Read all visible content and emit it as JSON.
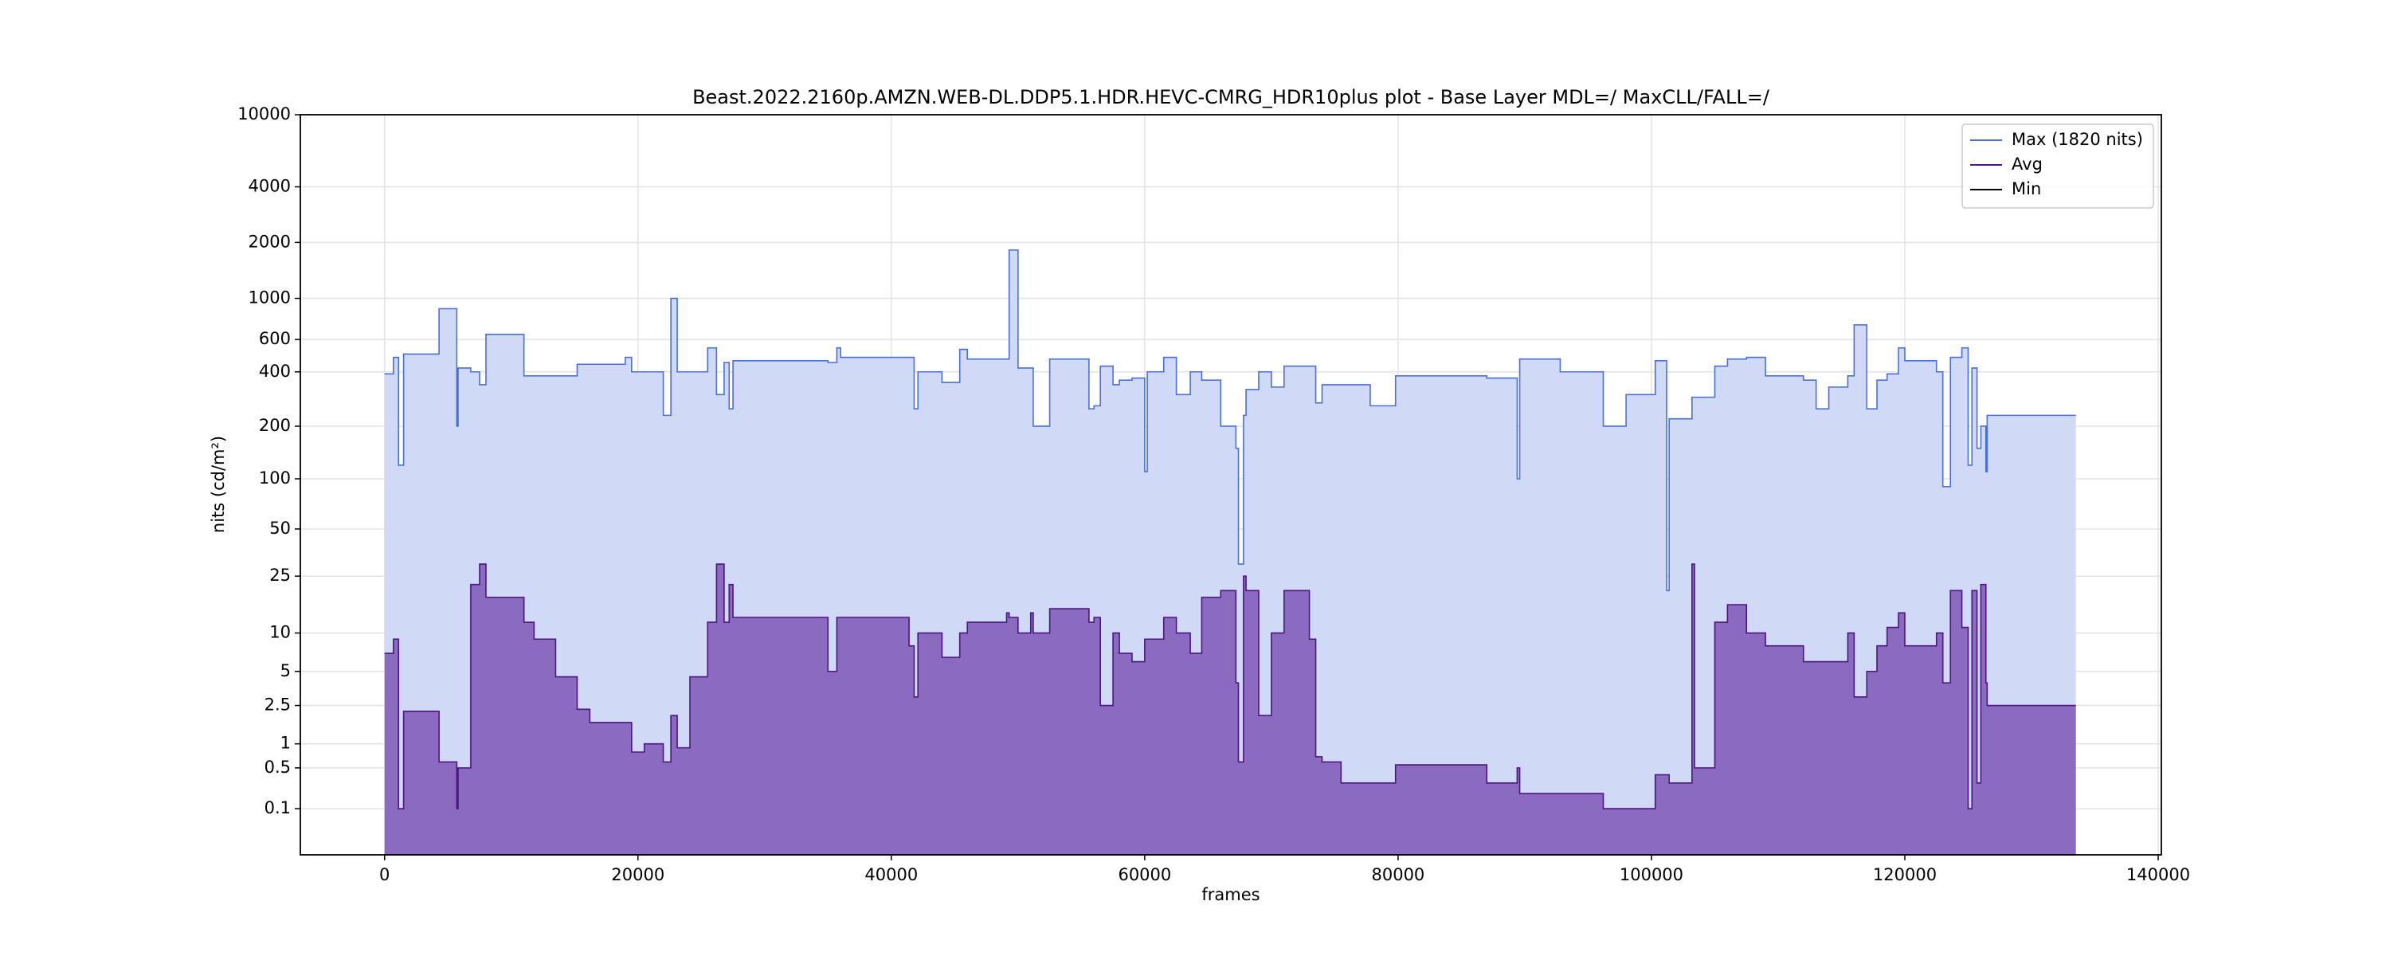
{
  "chart_data": {
    "type": "area",
    "title": "Beast.2022.2160p.AMZN.WEB-DL.DDP5.1.HDR.HEVC-CMRG_HDR10plus plot - Base Layer MDL=/ MaxCLL/FALL=/",
    "x_label": "frames",
    "y_label": "nits (cd/m²)",
    "yscale": "pq",
    "drawstyle": "steps-post",
    "grid": true,
    "legend": "upper right",
    "xlim": [
      -6650,
      140250
    ],
    "xticks": [
      0,
      20000,
      40000,
      60000,
      80000,
      100000,
      120000,
      140000
    ],
    "ylim": [
      0,
      10000
    ],
    "yticks": [
      0.1,
      0.5,
      1,
      2.5,
      5,
      10,
      25,
      50,
      100,
      200,
      400,
      600,
      1000,
      2000,
      4000,
      10000
    ],
    "x": [
      0,
      700,
      1100,
      1500,
      4300,
      5700,
      5800,
      6800,
      7500,
      8000,
      11000,
      11800,
      13500,
      15200,
      16200,
      19000,
      19500,
      20500,
      22000,
      22600,
      23100,
      24100,
      25500,
      26200,
      26800,
      27200,
      27500,
      35000,
      35700,
      36000,
      41400,
      41800,
      42100,
      44000,
      45400,
      46000,
      49100,
      49300,
      50000,
      51000,
      51200,
      52500,
      55600,
      56000,
      56500,
      57500,
      58000,
      59000,
      60000,
      60200,
      61500,
      62500,
      63600,
      64500,
      66000,
      67200,
      67400,
      67800,
      68000,
      69000,
      70000,
      71000,
      73000,
      73500,
      74000,
      75500,
      77800,
      79800,
      87000,
      89400,
      89600,
      92800,
      96200,
      98000,
      100300,
      101200,
      101400,
      103200,
      103400,
      105000,
      106000,
      107500,
      109000,
      112000,
      113000,
      114000,
      115500,
      116000,
      117000,
      117800,
      118600,
      119500,
      120000,
      122500,
      123000,
      123600,
      124500,
      125000,
      125300,
      125700,
      126000,
      126400,
      126500,
      133500
    ],
    "series": [
      {
        "name": "Max (1820 nits)",
        "color": "#4a6fd8",
        "fill": "#d0d9f6",
        "values": [
          390,
          480,
          120,
          500,
          880,
          200,
          420,
          400,
          340,
          640,
          380,
          380,
          380,
          440,
          440,
          480,
          400,
          400,
          230,
          1000,
          400,
          400,
          540,
          300,
          450,
          250,
          460,
          450,
          540,
          480,
          480,
          250,
          400,
          350,
          530,
          470,
          470,
          1820,
          420,
          420,
          200,
          470,
          250,
          260,
          430,
          340,
          360,
          370,
          110,
          400,
          480,
          300,
          400,
          360,
          200,
          150,
          30,
          230,
          320,
          400,
          330,
          430,
          430,
          270,
          340,
          340,
          260,
          380,
          370,
          100,
          470,
          400,
          200,
          300,
          460,
          20,
          220,
          290,
          290,
          430,
          470,
          480,
          380,
          360,
          250,
          330,
          380,
          720,
          250,
          360,
          390,
          540,
          460,
          400,
          90,
          480,
          540,
          120,
          420,
          150,
          200,
          110,
          230,
          230
        ]
      },
      {
        "name": "Avg",
        "color": "#4b1582",
        "fill": "#8b6bbf",
        "values": [
          7,
          9,
          0.1,
          2.2,
          0.6,
          0.1,
          0.5,
          22,
          30,
          18,
          12,
          9,
          4.5,
          2.3,
          1.7,
          1.7,
          0.8,
          1,
          0.6,
          2,
          0.9,
          4.5,
          12,
          30,
          12,
          22,
          13,
          5,
          13,
          13,
          8,
          3,
          10,
          6.5,
          10,
          12,
          14,
          13,
          10,
          14,
          10,
          15,
          12,
          13,
          2.5,
          10,
          7,
          6,
          9,
          9,
          13,
          10,
          7,
          18,
          20,
          4,
          0.6,
          25,
          20,
          2,
          10,
          20,
          9,
          0.7,
          0.6,
          0.3,
          0.3,
          0.55,
          0.3,
          0.5,
          0.2,
          0.2,
          0.1,
          0.1,
          0.4,
          0.4,
          0.3,
          30,
          0.5,
          12,
          16,
          10,
          8,
          6,
          6,
          6,
          10,
          3,
          5,
          8,
          11,
          14,
          8,
          10,
          4,
          20,
          11,
          0.1,
          20,
          0.3,
          22,
          4,
          2.5,
          2.5
        ]
      },
      {
        "name": "Min",
        "color": "#000000",
        "values": [
          0,
          0,
          0,
          0,
          0,
          0,
          0,
          0,
          0,
          0,
          0,
          0,
          0,
          0,
          0,
          0,
          0,
          0,
          0,
          0,
          0,
          0,
          0,
          0,
          0,
          0,
          0,
          0,
          0,
          0,
          0,
          0,
          0,
          0,
          0,
          0,
          0,
          0,
          0,
          0,
          0,
          0,
          0,
          0,
          0,
          0,
          0,
          0,
          0,
          0,
          0,
          0,
          0,
          0,
          0,
          0,
          0,
          0,
          0,
          0,
          0,
          0,
          0,
          0,
          0,
          0,
          0,
          0,
          0,
          0,
          0,
          0,
          0,
          0,
          0,
          0,
          0,
          0,
          0,
          0,
          0,
          0,
          0,
          0,
          0,
          0,
          0,
          0,
          0,
          0,
          0,
          0,
          0,
          0,
          0,
          0,
          0,
          0,
          0,
          0,
          0,
          0,
          0,
          0
        ]
      }
    ]
  }
}
